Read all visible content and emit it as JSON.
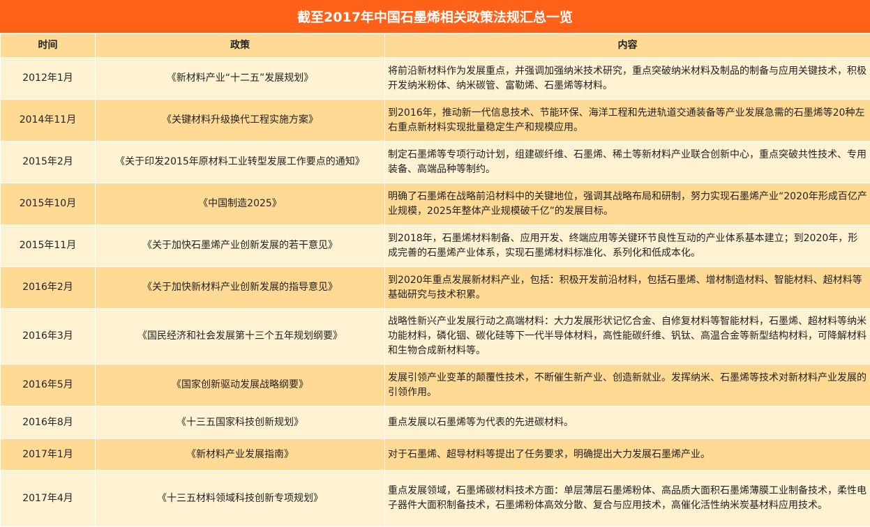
{
  "title": "截至2017年中国石墨烯相关政策法规汇总一览",
  "colors": {
    "title_bg": "#FF6119",
    "header_bg": "#FFDA95",
    "row_light": "#FFF2D3",
    "row_dark": "#FFDA95"
  },
  "columns": [
    "时间",
    "政策",
    "内容"
  ],
  "rows": [
    {
      "time": "2012年1月",
      "policy": "《新材料产业“十二五”发展规划》",
      "content": "将前沿新材料作为发展重点，并强调加强纳米技术研究，重点突破纳米材料及制品的制备与应用关键技术，积极开发纳米粉体、纳米碳管、富勒烯、石墨烯等材料。"
    },
    {
      "time": "2014年11月",
      "policy": "《关键材料升级换代工程实施方案》",
      "content": "到2016年，推动新一代信息技术、节能环保、海洋工程和先进轨道交通装备等产业发展急需的石墨烯等20种左右重点新材料实现批量稳定生产和规模应用。"
    },
    {
      "time": "2015年2月",
      "policy": "《关于印发2015年原材料工业转型发展工作要点的通知》",
      "content": "制定石墨烯等专项行动计划，组建碳纤维、石墨烯、稀土等新材料产业联合创新中心，重点突破共性技术、专用装备、高端品种等制约。"
    },
    {
      "time": "2015年10月",
      "policy": "《中国制造2025》",
      "content": "明确了石墨烯在战略前沿材料中的关键地位，强调其战略布局和研制，努力实现石墨烯产业“2020年形成百亿产业规模，2025年整体产业规模破千亿”的发展目标。"
    },
    {
      "time": "2015年11月",
      "policy": "《关于加快石墨烯产业创新发展的若干意见》",
      "content": "到2018年，石墨烯材料制备、应用开发、终端应用等关键环节良性互动的产业体系基本建立；到2020年，形成完善的石墨烯产业体系，实现石墨烯材料标准化、系列化和低成本化。"
    },
    {
      "time": "2016年2月",
      "policy": "《关于加快新材料产业创新发展的指导意见》",
      "content": "到2020年重点发展新材料产业，包括：积极开发前沿材料，包括石墨烯、增材制造材料、智能材料、超材料等基础研究与技术积累。"
    },
    {
      "time": "2016年3月",
      "policy": "《国民经济和社会发展第十三个五年规划纲要》",
      "content": "战略性新兴产业发展行动之高端材料：大力发展形状记忆合金、自修复材料等智能材料，石墨烯、超材料等纳米功能材料，磷化铟、碳化硅等下一代半导体材料，高性能碳纤维、钒钛、高温合金等新型结构材料，可降解材料和生物合成新材料等。"
    },
    {
      "time": "2016年5月",
      "policy": "《国家创新驱动发展战略纲要》",
      "content": "发展引领产业变革的颠覆性技术，不断催生新产业、创造新就业。发挥纳米、石墨烯等技术对新材料产业发展的引领作用。"
    },
    {
      "time": "2016年8月",
      "policy": "《十三五国家科技创新规划》",
      "content": "重点发展以石墨烯等为代表的先进碳材料。"
    },
    {
      "time": "2017年1月",
      "policy": "《新材料产业发展指南》",
      "content": "对于石墨烯、超导材料等提出了任务要求，明确提出大力发展石墨烯产业。"
    },
    {
      "time": "2017年4月",
      "policy": "《十三五材料领域科技创新专项规划》",
      "content": "重点发展领域，石墨烯碳材料技术方面：单层薄层石墨烯粉体、高品质大面积石墨烯薄膜工业制备技术，柔性电子器件大面积制备技术，石墨烯粉体高效分散、复合与应用技术，高催化活性纳米炭基材料应用技术。"
    }
  ]
}
